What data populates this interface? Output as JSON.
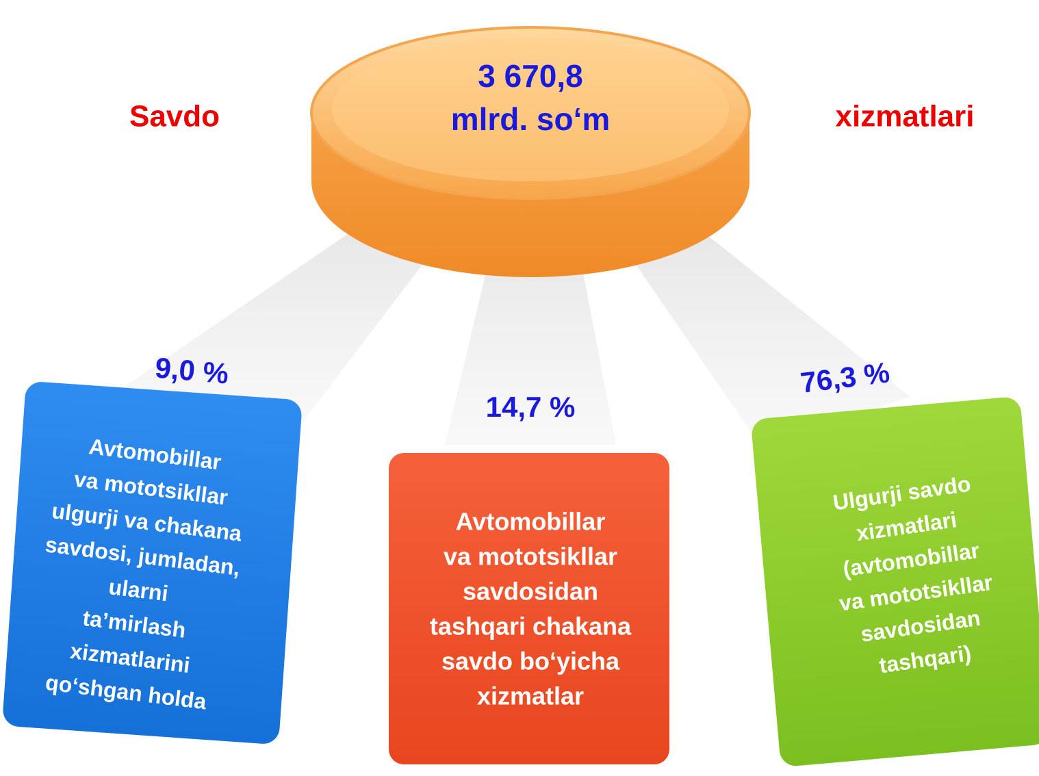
{
  "header": {
    "left": "Savdo",
    "right": "xizmatlari"
  },
  "center": {
    "lines": [
      "3 670,8",
      "mlrd. so‘m"
    ]
  },
  "branches": [
    {
      "percent": "9,0 %",
      "lines": [
        "Avtomobillar",
        "va mototsikllar",
        "ulgurji va chakana",
        "savdosi, jumladan,",
        "ularni",
        "ta’mirlash",
        "xizmatlarini",
        "qo‘shgan holda"
      ]
    },
    {
      "percent": "14,7 %",
      "lines": [
        "Avtomobillar",
        "va mototsikllar",
        "savdosidan",
        "tashqari chakana",
        "savdo bo‘yicha",
        "xizmatlar"
      ]
    },
    {
      "percent": "76,3 %",
      "lines": [
        "Ulgurji savdo",
        "xizmatlari",
        "(avtomobillar",
        "va mototsikllar",
        "savdosidan",
        "tashqari)"
      ]
    }
  ]
}
